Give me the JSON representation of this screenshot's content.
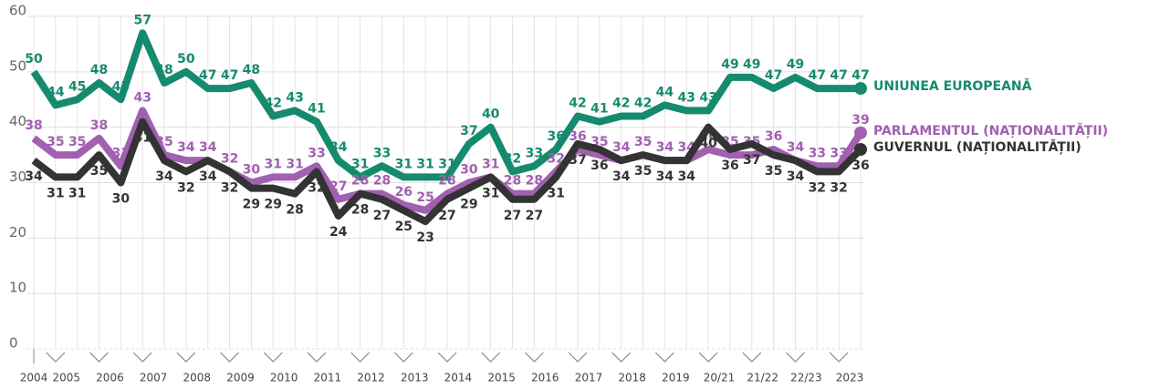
{
  "chart_data": {
    "type": "line",
    "categories": [
      "2004",
      "2005",
      null,
      "2006",
      null,
      "2007",
      null,
      "2008",
      null,
      "2009",
      null,
      "2010",
      null,
      "2011",
      null,
      "2012",
      null,
      "2013",
      null,
      "2014",
      null,
      "2015",
      null,
      "2016",
      null,
      "2017",
      null,
      "2018",
      null,
      "2019",
      null,
      "20/21",
      null,
      "21/22",
      null,
      "22/23",
      null,
      "2023",
      null
    ],
    "series": [
      {
        "name": "UNIUNEA EUROPEANĂ",
        "color": "#168a6e",
        "label_side": "above",
        "values": [
          50,
          44,
          45,
          48,
          45,
          57,
          48,
          50,
          47,
          47,
          48,
          42,
          43,
          41,
          34,
          31,
          33,
          31,
          31,
          31,
          37,
          40,
          32,
          33,
          36,
          42,
          41,
          42,
          42,
          44,
          43,
          43,
          49,
          49,
          47,
          49,
          47,
          47,
          47
        ]
      },
      {
        "name": "PARLAMENTUL (NAȚIONALITĂȚII)",
        "color": "#a160b0",
        "label_side": "above",
        "values": [
          38,
          35,
          35,
          38,
          33,
          43,
          35,
          34,
          34,
          32,
          30,
          31,
          31,
          33,
          27,
          28,
          28,
          26,
          25,
          28,
          30,
          31,
          28,
          28,
          32,
          36,
          35,
          34,
          35,
          34,
          34,
          36,
          35,
          35,
          36,
          34,
          33,
          33,
          39
        ]
      },
      {
        "name": "GUVERNUL (NAȚIONALITĂȚII)",
        "color": "#333333",
        "label_side": "below",
        "values": [
          34,
          31,
          31,
          35,
          30,
          41,
          34,
          32,
          34,
          32,
          29,
          29,
          28,
          32,
          24,
          28,
          27,
          25,
          23,
          27,
          29,
          31,
          27,
          27,
          31,
          37,
          36,
          34,
          35,
          34,
          34,
          40,
          36,
          37,
          35,
          34,
          32,
          32,
          36
        ]
      }
    ],
    "ylim": [
      0,
      60
    ],
    "yticks": [
      0,
      10,
      20,
      30,
      40,
      50,
      60
    ],
    "grid": true
  }
}
